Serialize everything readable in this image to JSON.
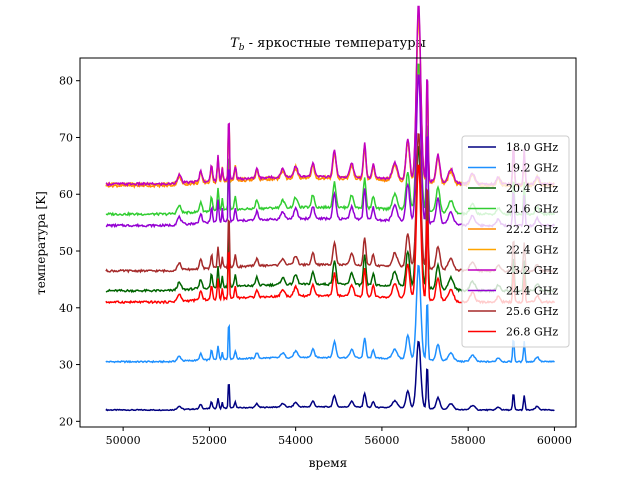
{
  "chart_data": {
    "type": "line",
    "title": "T_b - яркостные температуры",
    "title_math": "T",
    "title_sub": "b",
    "title_rest": " - яркостные температуры",
    "xlabel": "время",
    "ylabel": "температура [K]",
    "xlim": [
      49000,
      60500
    ],
    "ylim": [
      19,
      84
    ],
    "xticks": [
      50000,
      52000,
      54000,
      56000,
      58000,
      60000
    ],
    "yticks": [
      20,
      30,
      40,
      50,
      60,
      70,
      80
    ],
    "grid": false,
    "legend_position": "center-right",
    "series": [
      {
        "name": "18.0 GHz",
        "color": "#000080",
        "base": 22.0,
        "scale": 1.0,
        "freq": 18.0
      },
      {
        "name": "19.2 GHz",
        "color": "#1e90ff",
        "base": 30.5,
        "scale": 1.4,
        "freq": 19.2
      },
      {
        "name": "20.4 GHz",
        "color": "#006400",
        "base": 43.0,
        "scale": 2.1,
        "freq": 20.4
      },
      {
        "name": "21.6 GHz",
        "color": "#32cd32",
        "base": 56.5,
        "scale": 2.2,
        "freq": 21.6
      },
      {
        "name": "22.2 GHz",
        "color": "#ff8c00",
        "base": 61.5,
        "scale": 2.3,
        "freq": 22.2
      },
      {
        "name": "22.4 GHz",
        "color": "#ffa500",
        "base": 61.8,
        "scale": 2.3,
        "freq": 22.4
      },
      {
        "name": "23.2 GHz",
        "color": "#c000c0",
        "base": 61.8,
        "scale": 2.4,
        "freq": 23.2
      },
      {
        "name": "24.4 GHz",
        "color": "#9400d3",
        "base": 54.5,
        "scale": 2.2,
        "freq": 24.4
      },
      {
        "name": "25.6 GHz",
        "color": "#a52a2a",
        "base": 46.5,
        "scale": 2.0,
        "freq": 25.6
      },
      {
        "name": "26.8 GHz",
        "color": "#ff0000",
        "base": 41.0,
        "scale": 2.0,
        "freq": 26.8
      }
    ],
    "features": [
      {
        "x": 51300,
        "amp": 0.6,
        "w": 60
      },
      {
        "x": 51800,
        "amp": 0.8,
        "w": 40
      },
      {
        "x": 52050,
        "amp": 1.2,
        "w": 30
      },
      {
        "x": 52200,
        "amp": 1.8,
        "w": 25
      },
      {
        "x": 52300,
        "amp": 1.0,
        "w": 20
      },
      {
        "x": 52450,
        "amp": 5.5,
        "w": 18
      },
      {
        "x": 52600,
        "amp": 1.0,
        "w": 30
      },
      {
        "x": 53100,
        "amp": 0.7,
        "w": 40
      },
      {
        "x": 53700,
        "amp": 0.6,
        "w": 60
      },
      {
        "x": 54000,
        "amp": 0.8,
        "w": 60
      },
      {
        "x": 54400,
        "amp": 1.0,
        "w": 50
      },
      {
        "x": 54900,
        "amp": 2.0,
        "w": 50
      },
      {
        "x": 55300,
        "amp": 1.0,
        "w": 60
      },
      {
        "x": 55600,
        "amp": 2.5,
        "w": 40
      },
      {
        "x": 55800,
        "amp": 1.0,
        "w": 40
      },
      {
        "x": 56300,
        "amp": 1.2,
        "w": 80
      },
      {
        "x": 56600,
        "amp": 3.0,
        "w": 60
      },
      {
        "x": 56850,
        "amp": 12.0,
        "w": 70
      },
      {
        "x": 57050,
        "amp": 8.0,
        "w": 25
      },
      {
        "x": 57300,
        "amp": 2.0,
        "w": 60
      },
      {
        "x": 57600,
        "amp": 1.0,
        "w": 80
      },
      {
        "x": 58100,
        "amp": 0.8,
        "w": 80
      },
      {
        "x": 58700,
        "amp": 0.5,
        "w": 60
      },
      {
        "x": 59050,
        "amp": 3.0,
        "w": 25
      },
      {
        "x": 59300,
        "amp": 2.5,
        "w": 25
      },
      {
        "x": 59600,
        "amp": 0.6,
        "w": 60
      }
    ]
  }
}
